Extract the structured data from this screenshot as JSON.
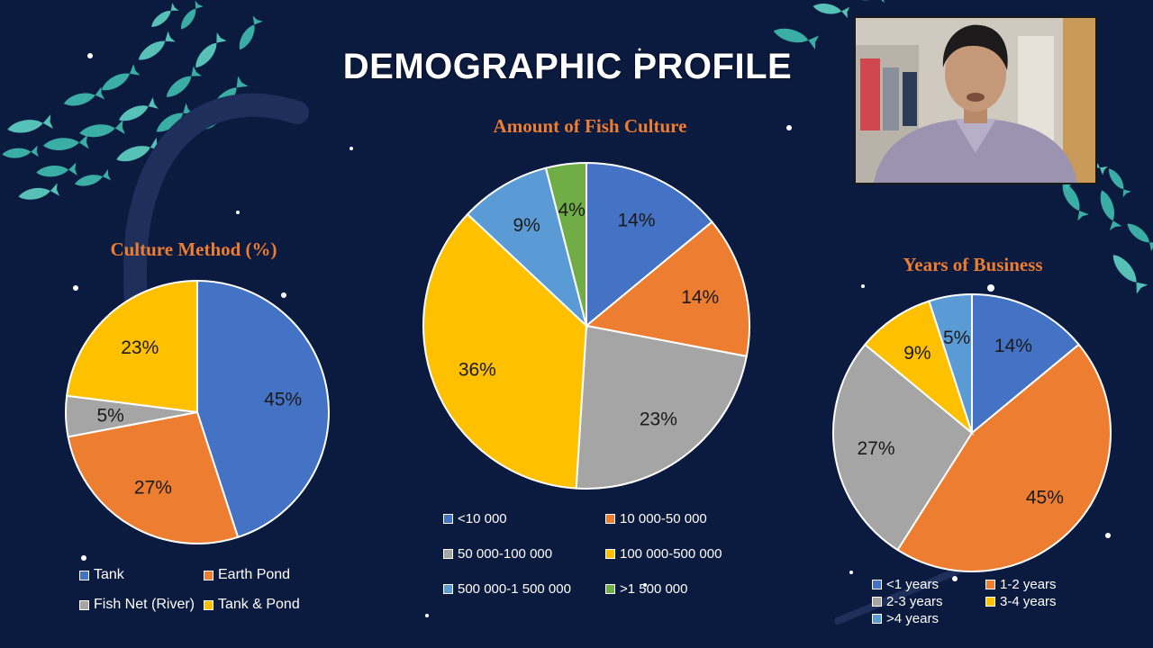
{
  "slide": {
    "title": "DEMOGRAPHIC PROFILE",
    "background_color": "#0b1a3f",
    "accent_color": "#3fbfb0"
  },
  "chart_data": [
    {
      "type": "pie",
      "title": "Culture Method (%)",
      "categories": [
        "Tank",
        "Earth Pond",
        "Fish Net (River)",
        "Tank & Pond"
      ],
      "values": [
        45,
        27,
        5,
        23
      ],
      "labels": [
        "45%",
        "27%",
        "5%",
        "23%"
      ],
      "colors": [
        "#4472c4",
        "#ed7d31",
        "#a5a5a5",
        "#ffc000"
      ],
      "legend": "bottom"
    },
    {
      "type": "pie",
      "title": "Amount of Fish Culture",
      "categories": [
        "<10 000",
        "10 000-50 000",
        "50 000-100 000",
        "100 000-500 000",
        "500 000-1 500 000",
        ">1 500 000"
      ],
      "values": [
        14,
        14,
        23,
        36,
        9,
        4
      ],
      "labels": [
        "14%",
        "14%",
        "23%",
        "36%",
        "9%",
        "4%"
      ],
      "colors": [
        "#4472c4",
        "#ed7d31",
        "#a5a5a5",
        "#ffc000",
        "#5b9bd5",
        "#70ad47"
      ],
      "legend": "bottom"
    },
    {
      "type": "pie",
      "title": "Years of Business",
      "categories": [
        "<1 years",
        "1-2 years",
        "2-3 years",
        "3-4  years",
        ">4 years"
      ],
      "values": [
        14,
        45,
        27,
        9,
        5
      ],
      "labels": [
        "14%",
        "45%",
        "27%",
        "9%",
        "5%"
      ],
      "colors": [
        "#4472c4",
        "#ed7d31",
        "#a5a5a5",
        "#ffc000",
        "#5b9bd5"
      ],
      "legend": "bottom"
    }
  ],
  "webcam": {
    "icon": "presenter-video-feed"
  }
}
